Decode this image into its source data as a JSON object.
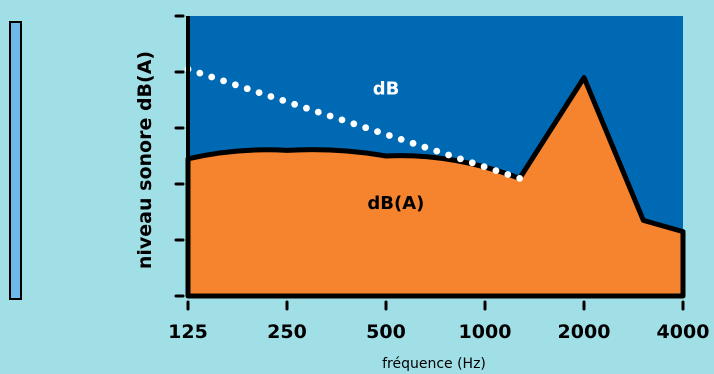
{
  "chart_data": {
    "type": "area",
    "title": "",
    "xlabel": "fréquence (Hz)",
    "ylabel": "niveau sonore dB(A)",
    "x_ticks": [
      "125",
      "250",
      "500",
      "1000",
      "2000",
      "4000"
    ],
    "y_ticks_count": 6,
    "xlim": [
      0,
      5
    ],
    "ylim": [
      0,
      5
    ],
    "grid": false,
    "series": [
      {
        "name": "dB",
        "style": "dotted-line",
        "color": "#ffffff",
        "points": [
          [
            0,
            4.05
          ],
          [
            3.35,
            2.1
          ]
        ]
      },
      {
        "name": "dB(A)",
        "style": "filled-area",
        "color": "#f6832d",
        "points": [
          [
            0,
            2.45
          ],
          [
            1,
            2.6
          ],
          [
            2,
            2.5
          ],
          [
            3.35,
            2.1
          ],
          [
            4,
            3.9
          ],
          [
            4.6,
            1.35
          ],
          [
            5,
            1.15
          ]
        ]
      }
    ],
    "background_area": {
      "name": "dB",
      "color": "#0069b4"
    },
    "region_labels": [
      {
        "text": "dB",
        "x": 2,
        "y": 3.6,
        "color": "#ffffff"
      },
      {
        "text": "dB(A)",
        "x": 2.1,
        "y": 1.55,
        "color": "#000000"
      }
    ]
  },
  "legend_bar": {
    "color": "#6fb8ea"
  }
}
